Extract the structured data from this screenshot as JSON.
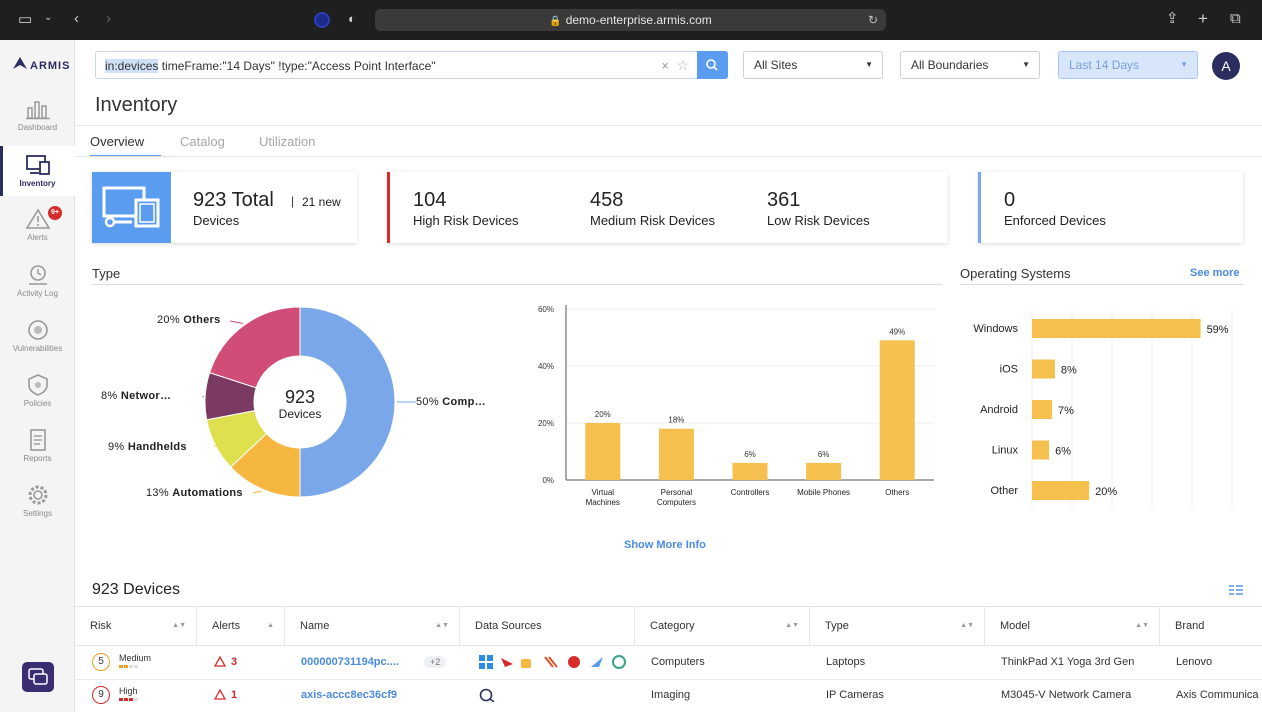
{
  "browser": {
    "url": "demo-enterprise.armis.com",
    "icons": [
      "sidebar-toggle-icon",
      "chevron-down-icon",
      "back-icon",
      "forward-icon",
      "privacy-icon",
      "shield-icon",
      "lock-icon",
      "reload-icon",
      "share-icon",
      "new-tab-icon",
      "tab-overview-icon"
    ]
  },
  "brand": {
    "logo_text": "ARMIS"
  },
  "sidebar": {
    "items": [
      {
        "label": "Dashboard",
        "icon": "bar-chart-icon"
      },
      {
        "label": "Inventory",
        "icon": "devices-icon",
        "active": true
      },
      {
        "label": "Alerts",
        "icon": "warning-icon",
        "badge": "9+"
      },
      {
        "label": "Activity Log",
        "icon": "activity-icon"
      },
      {
        "label": "Vulnerabilities",
        "icon": "vulnerability-icon"
      },
      {
        "label": "Policies",
        "icon": "policy-shield-icon"
      },
      {
        "label": "Reports",
        "icon": "report-icon"
      },
      {
        "label": "Settings",
        "icon": "gear-icon"
      }
    ],
    "chat_icon": "chat-icon"
  },
  "search": {
    "query_highlight": "in:devices",
    "query_rest": " timeFrame:\"14 Days\" !type:\"Access Point Interface\""
  },
  "filters": {
    "sites": "All Sites",
    "boundaries": "All Boundaries",
    "timeframe": "Last 14 Days"
  },
  "user": {
    "avatar_initial": "A"
  },
  "page": {
    "title": "Inventory",
    "tabs": [
      "Overview",
      "Catalog",
      "Utilization"
    ]
  },
  "cards": {
    "total": {
      "value": "923 Total",
      "new": "21 new",
      "label": "Devices"
    },
    "risk": [
      {
        "value": "104",
        "label": "High Risk Devices"
      },
      {
        "value": "458",
        "label": "Medium Risk Devices"
      },
      {
        "value": "361",
        "label": "Low Risk Devices"
      }
    ],
    "enforced": {
      "value": "0",
      "label": "Enforced Devices"
    }
  },
  "type_section": {
    "title": "Type",
    "center_value": "923",
    "center_label": "Devices",
    "show_more": "Show More Info"
  },
  "os_section": {
    "title": "Operating Systems",
    "see_more": "See more"
  },
  "chart_data": [
    {
      "type": "pie",
      "title": "",
      "categories": [
        "Comp…",
        "Automations",
        "Handhelds",
        "Networ…",
        "Others"
      ],
      "values": [
        50,
        13,
        9,
        8,
        20
      ],
      "labels": [
        "50% Comp…",
        "13% Automations",
        "9% Handhelds",
        "8% Networ…",
        "20% Others"
      ],
      "colors": [
        "#7aa7ea",
        "#f5b740",
        "#dfe04e",
        "#7a3a62",
        "#d04d77"
      ]
    },
    {
      "type": "bar",
      "title": "",
      "categories": [
        "Virtual Machines",
        "Personal Computers",
        "Controllers",
        "Mobile Phones",
        "Others"
      ],
      "values": [
        20,
        18,
        6,
        6,
        49
      ],
      "value_labels": [
        "20%",
        "18%",
        "6%",
        "6%",
        "49%"
      ],
      "yticks": [
        "0%",
        "20%",
        "40%",
        "60%"
      ],
      "ylim": [
        0,
        60
      ],
      "color": "#f5c04e"
    },
    {
      "type": "bar",
      "orientation": "horizontal",
      "title": "",
      "categories": [
        "Windows",
        "iOS",
        "Android",
        "Linux",
        "Other"
      ],
      "values": [
        59,
        8,
        7,
        6,
        20
      ],
      "value_labels": [
        "59%",
        "8%",
        "7%",
        "6%",
        "20%"
      ],
      "xlim": [
        0,
        70
      ],
      "color": "#f5c04e"
    }
  ],
  "table": {
    "title": "923 Devices",
    "columns": [
      "Risk",
      "Alerts",
      "Name",
      "Data Sources",
      "Category",
      "Type",
      "Model",
      "Brand"
    ],
    "rows": [
      {
        "risk_score": "5",
        "risk_level": "Medium",
        "risk_color": "#f0a020",
        "alerts": "3",
        "name": "000000731194pc....",
        "extra": "+2",
        "category": "Computers",
        "type": "Laptops",
        "model": "ThinkPad X1 Yoga 3rd Gen",
        "brand": "Lenovo"
      },
      {
        "risk_score": "9",
        "risk_level": "High",
        "risk_color": "#d52b2b",
        "alerts": "1",
        "name": "axis-accc8ec36cf9",
        "extra": "",
        "category": "Imaging",
        "type": "IP Cameras",
        "model": "M3045-V Network Camera",
        "brand": "Axis Communica"
      }
    ]
  }
}
